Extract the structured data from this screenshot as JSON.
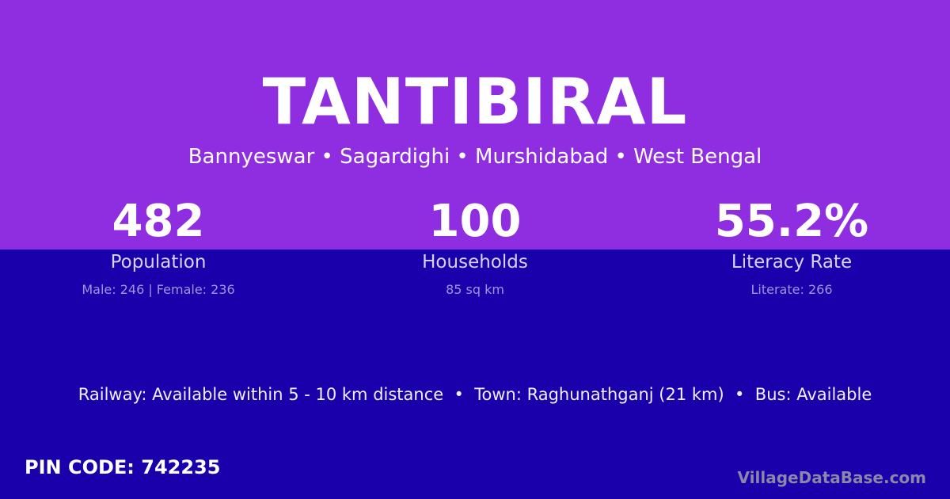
{
  "village": "TANTIBIRAL",
  "location": "Bannyeswar • Sagardighi • Murshidabad • West Bengal",
  "stats": [
    {
      "value": "482",
      "label": "Population",
      "detail": "Male: 246 | Female: 236"
    },
    {
      "value": "100",
      "label": "Households",
      "detail": "85 sq km"
    },
    {
      "value": "55.2%",
      "label": "Literacy Rate",
      "detail": "Literate: 266"
    }
  ],
  "connectivity": "Railway: Available within 5 - 10 km distance  •  Town: Raghunathganj (21 km)  •  Bus: Available",
  "pin": "PIN CODE: 742235",
  "brand": "VillageDataBase.com",
  "colors": {
    "top": "#8f2de0",
    "bottom": "#1a00aa"
  }
}
